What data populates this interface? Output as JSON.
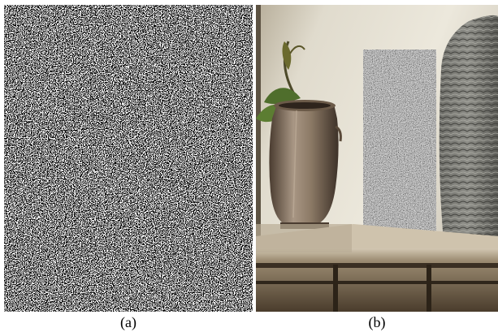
{
  "panels": [
    {
      "id": "a",
      "caption": "(a)",
      "content": "binary-random-noise-pattern"
    },
    {
      "id": "b",
      "caption": "(b)",
      "content": "photo-plant-pot-noise-screen-basket"
    }
  ],
  "colors": {
    "noise_dark": "#000000",
    "noise_light": "#ffffff",
    "wall": "#dcd6c8",
    "shelf": "#6b5a44",
    "pot": "#8a7a68"
  }
}
